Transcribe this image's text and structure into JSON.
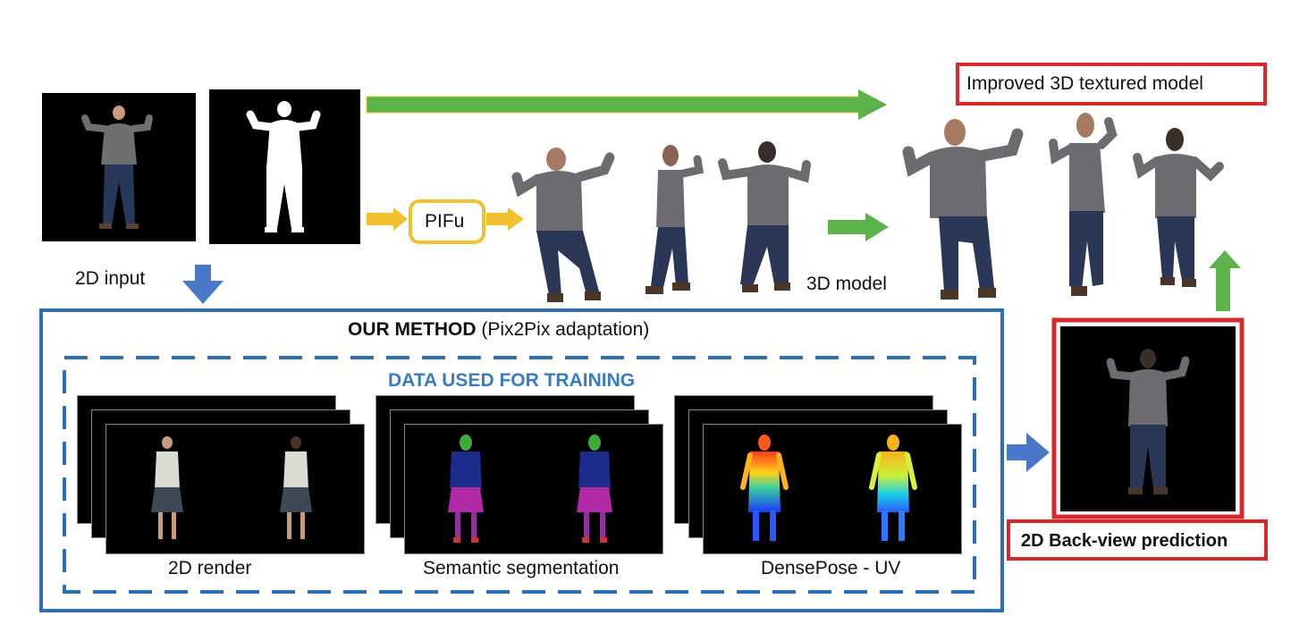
{
  "labels": {
    "input_2d": "2D input",
    "pifu": "PIFu",
    "model_3d": "3D model",
    "improved_model": "Improved 3D textured model",
    "method_bold": "OUR METHOD",
    "method_rest": " (Pix2Pix adaptation)",
    "training_data": "DATA USED FOR TRAINING",
    "render_2d": "2D render",
    "semantic_seg": "Semantic segmentation",
    "densepose": "DensePose - UV",
    "back_view": "2D Back-view prediction"
  },
  "colors": {
    "green_arrow": "#5cb34a",
    "yellow_arrow": "#f2c02e",
    "blue_arrow": "#4a78c8",
    "method_border": "#2f6db5",
    "training_text": "#3a7cc0",
    "red_box": "#d62a2a"
  }
}
